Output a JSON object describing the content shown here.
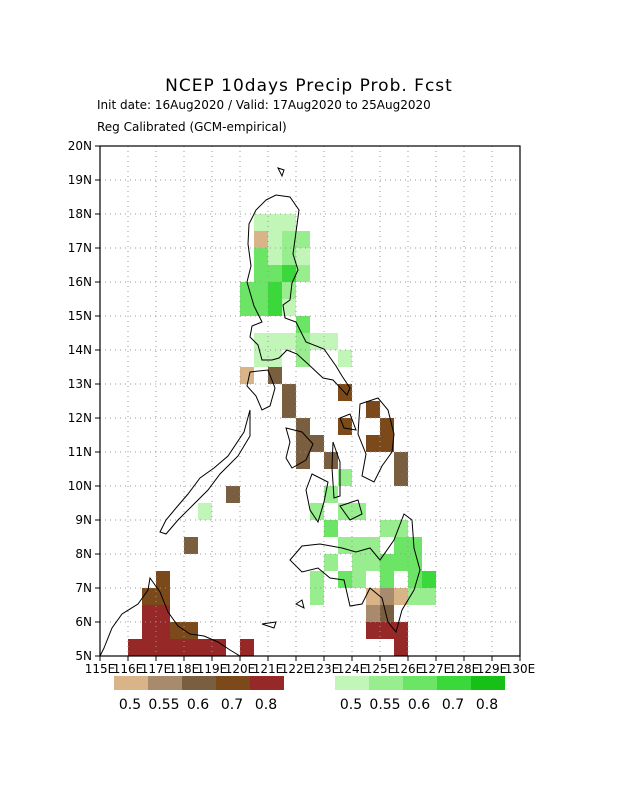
{
  "title": "NCEP 10days Precip Prob. Fcst",
  "subtitle_line1": "Init date: 16Aug2020 / Valid: 17Aug2020 to 25Aug2020",
  "subtitle_line2": "Reg Calibrated (GCM-empirical)",
  "map": {
    "lon_range": [
      115,
      130
    ],
    "lat_range": [
      5,
      20
    ],
    "lon_ticks": [
      "115E",
      "116E",
      "117E",
      "118E",
      "119E",
      "120E",
      "121E",
      "122E",
      "123E",
      "124E",
      "125E",
      "126E",
      "127E",
      "128E",
      "129E",
      "130E"
    ],
    "lat_ticks": [
      "5N",
      "6N",
      "7N",
      "8N",
      "9N",
      "10N",
      "11N",
      "12N",
      "13N",
      "14N",
      "15N",
      "16N",
      "17N",
      "18N",
      "19N",
      "20N"
    ],
    "grid_cell_deg": 0.5
  },
  "legend": {
    "dry": {
      "colors": [
        "#d8b488",
        "#a88a6c",
        "#7a5e40",
        "#7c4a1a",
        "#962828"
      ],
      "labels": [
        "0.5",
        "0.55",
        "0.6",
        "0.7",
        "0.8"
      ]
    },
    "wet": {
      "colors": [
        "#c2f5b8",
        "#98ee8e",
        "#6ce466",
        "#3ad83a",
        "#16c016"
      ],
      "labels": [
        "0.5",
        "0.55",
        "0.6",
        "0.7",
        "0.8"
      ]
    }
  },
  "cells": {
    "cell_size_deg": 0.5,
    "palette_note_levels": [
      "d0",
      "d1",
      "d2",
      "d3",
      "d4",
      "w0",
      "w1",
      "w2",
      "w3",
      "w4"
    ],
    "data": [
      [
        "w0",
        121.0,
        17.5
      ],
      [
        "w0",
        121.5,
        17.5
      ],
      [
        "w0",
        120.5,
        17.5
      ],
      [
        "d0",
        120.5,
        17.0
      ],
      [
        "w0",
        121.0,
        17.0
      ],
      [
        "w1",
        121.5,
        17.0
      ],
      [
        "w1",
        122.0,
        17.0
      ],
      [
        "w0",
        121.0,
        16.5
      ],
      [
        "w2",
        120.5,
        16.5
      ],
      [
        "w1",
        121.5,
        16.5
      ],
      [
        "w0",
        122.0,
        16.5
      ],
      [
        "w2",
        120.5,
        16.0
      ],
      [
        "w2",
        121.0,
        16.0
      ],
      [
        "w3",
        121.5,
        16.0
      ],
      [
        "w1",
        122.0,
        16.0
      ],
      [
        "w2",
        120.0,
        15.5
      ],
      [
        "w2",
        120.5,
        15.5
      ],
      [
        "w3",
        121.0,
        15.5
      ],
      [
        "w1",
        121.5,
        15.5
      ],
      [
        "w2",
        120.0,
        15.0
      ],
      [
        "w2",
        120.5,
        15.0
      ],
      [
        "w3",
        121.0,
        15.0
      ],
      [
        "w0",
        121.5,
        15.0
      ],
      [
        "w2",
        122.0,
        14.5
      ],
      [
        "w0",
        120.5,
        14.0
      ],
      [
        "w0",
        121.0,
        14.0
      ],
      [
        "w0",
        121.5,
        14.0
      ],
      [
        "w1",
        122.0,
        14.0
      ],
      [
        "w0",
        122.5,
        14.0
      ],
      [
        "w0",
        123.0,
        14.0
      ],
      [
        "w0",
        120.5,
        13.5
      ],
      [
        "w0",
        121.0,
        13.5
      ],
      [
        "w1",
        122.0,
        13.5
      ],
      [
        "w0",
        123.5,
        13.5
      ],
      [
        "d0",
        120.0,
        13.0
      ],
      [
        "d2",
        121.0,
        13.0
      ],
      [
        "d2",
        121.5,
        12.5
      ],
      [
        "d2",
        121.5,
        12.0
      ],
      [
        "d3",
        123.5,
        12.5
      ],
      [
        "d3",
        123.5,
        11.5
      ],
      [
        "d3",
        124.5,
        12.0
      ],
      [
        "d3",
        125.0,
        11.5
      ],
      [
        "d3",
        125.0,
        11.0
      ],
      [
        "d3",
        124.5,
        11.0
      ],
      [
        "d2",
        122.0,
        11.5
      ],
      [
        "d2",
        122.0,
        11.0
      ],
      [
        "d2",
        122.5,
        11.0
      ],
      [
        "d2",
        122.0,
        10.5
      ],
      [
        "d2",
        123.0,
        10.5
      ],
      [
        "d2",
        125.5,
        10.5
      ],
      [
        "d2",
        125.5,
        10.0
      ],
      [
        "w1",
        123.5,
        10.0
      ],
      [
        "w1",
        123.0,
        9.5
      ],
      [
        "w1",
        122.5,
        9.0
      ],
      [
        "w1",
        123.5,
        9.0
      ],
      [
        "w2",
        123.0,
        8.5
      ],
      [
        "w1",
        124.0,
        9.0
      ],
      [
        "d2",
        119.5,
        9.5
      ],
      [
        "w0",
        118.5,
        9.0
      ],
      [
        "d2",
        118.0,
        8.0
      ],
      [
        "w1",
        125.0,
        8.5
      ],
      [
        "w1",
        125.5,
        8.5
      ],
      [
        "w2",
        125.5,
        8.0
      ],
      [
        "w2",
        126.0,
        8.0
      ],
      [
        "w1",
        124.5,
        8.0
      ],
      [
        "w1",
        124.0,
        8.0
      ],
      [
        "w1",
        123.5,
        8.0
      ],
      [
        "w1",
        123.0,
        7.5
      ],
      [
        "w2",
        125.0,
        7.5
      ],
      [
        "w2",
        125.5,
        7.5
      ],
      [
        "w2",
        126.0,
        7.5
      ],
      [
        "w1",
        124.5,
        7.5
      ],
      [
        "w1",
        124.0,
        7.5
      ],
      [
        "w1",
        122.5,
        7.0
      ],
      [
        "w2",
        123.5,
        7.0
      ],
      [
        "w1",
        124.0,
        7.0
      ],
      [
        "w2",
        125.0,
        7.0
      ],
      [
        "w2",
        126.0,
        7.0
      ],
      [
        "w3",
        126.5,
        7.0
      ],
      [
        "w1",
        126.5,
        6.5
      ],
      [
        "w1",
        126.0,
        6.5
      ],
      [
        "w1",
        122.5,
        6.5
      ],
      [
        "d0",
        124.5,
        6.5
      ],
      [
        "d1",
        125.0,
        6.5
      ],
      [
        "d0",
        125.5,
        6.5
      ],
      [
        "d1",
        124.5,
        6.0
      ],
      [
        "d2",
        125.0,
        6.0
      ],
      [
        "d4",
        124.5,
        5.5
      ],
      [
        "d4",
        125.0,
        5.5
      ],
      [
        "d4",
        125.5,
        5.5
      ],
      [
        "d4",
        125.5,
        5.0
      ],
      [
        "d3",
        117.0,
        7.0
      ],
      [
        "d3",
        117.0,
        6.5
      ],
      [
        "d3",
        116.5,
        6.5
      ],
      [
        "d4",
        116.5,
        6.0
      ],
      [
        "d4",
        117.0,
        6.0
      ],
      [
        "d4",
        116.5,
        5.5
      ],
      [
        "d4",
        117.0,
        5.5
      ],
      [
        "d4",
        116.5,
        5.0
      ],
      [
        "d4",
        117.0,
        5.0
      ],
      [
        "d4",
        116.0,
        5.0
      ],
      [
        "d3",
        117.5,
        5.5
      ],
      [
        "d3",
        118.0,
        5.5
      ],
      [
        "d4",
        117.5,
        5.0
      ],
      [
        "d4",
        118.0,
        5.0
      ],
      [
        "d4",
        118.5,
        5.0
      ],
      [
        "d4",
        119.0,
        5.0
      ],
      [
        "d4",
        120.0,
        5.0
      ]
    ]
  }
}
